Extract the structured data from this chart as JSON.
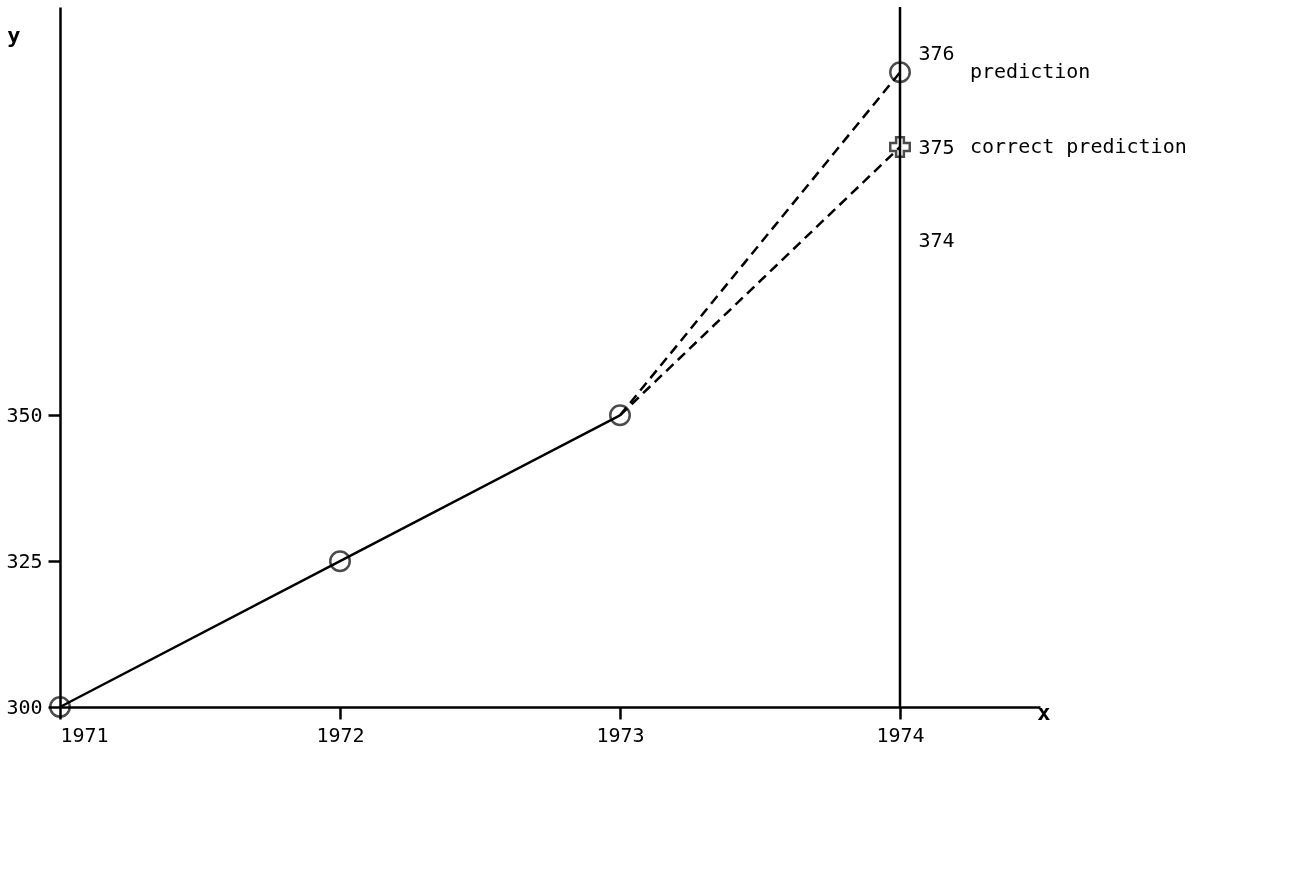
{
  "chart_data": {
    "type": "line",
    "xlabel": "x",
    "ylabel": "y",
    "xlim": [
      1971,
      1974.5
    ],
    "xticks": [
      1971,
      1972,
      1973,
      1974
    ],
    "ylim": [
      300,
      420
    ],
    "yticks": [
      300,
      325,
      350
    ],
    "y2lim": [
      369,
      376.5
    ],
    "y2ticks": [
      374,
      375,
      376
    ],
    "grid": false,
    "ref_lines": [
      {
        "axis": "x",
        "value": 1974
      }
    ],
    "series": [
      {
        "color": "#000000",
        "x": [
          1971,
          1972,
          1973
        ],
        "values": [
          300,
          325,
          350
        ],
        "marker": "circle",
        "line_style": "solid"
      },
      {
        "name": "prediction",
        "color": "#000000",
        "x": [
          1974
        ],
        "values": [
          375.8
        ],
        "marker": "circle",
        "line_style": "dashed",
        "axis": "y2"
      },
      {
        "name": "correct prediction",
        "color": "#000000",
        "x": [
          1974
        ],
        "values": [
          375
        ],
        "marker": "cross",
        "line_style": "dashed",
        "axis": "y2"
      }
    ]
  }
}
